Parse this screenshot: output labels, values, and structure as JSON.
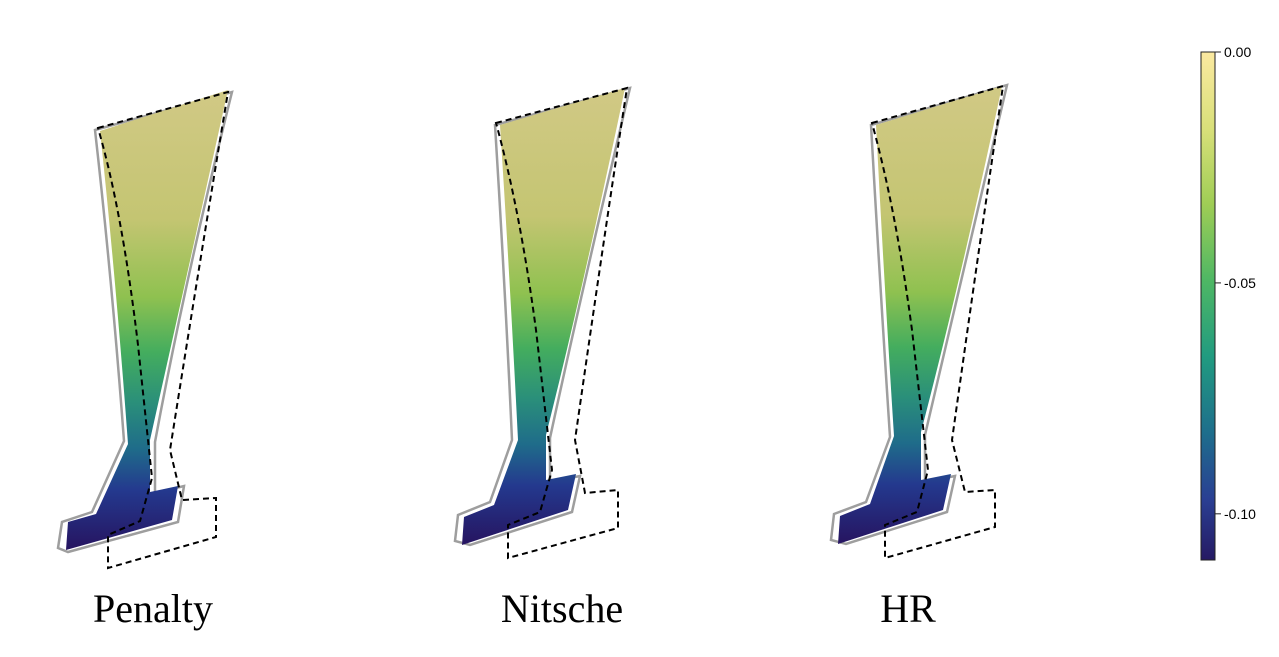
{
  "panels": [
    {
      "label": "Penalty"
    },
    {
      "label": "Nitsche"
    },
    {
      "label": "HR"
    }
  ],
  "colorbar": {
    "colormap": "viridis",
    "range": [
      -0.11,
      0.0
    ],
    "ticks": [
      {
        "value": 0.0,
        "label": "0.00"
      },
      {
        "value": -0.05,
        "label": "-0.05"
      },
      {
        "value": -0.1,
        "label": "-0.10"
      }
    ]
  },
  "styles": {
    "deformed_outline": "#9e9e9e",
    "reference_outline": "#000000"
  }
}
